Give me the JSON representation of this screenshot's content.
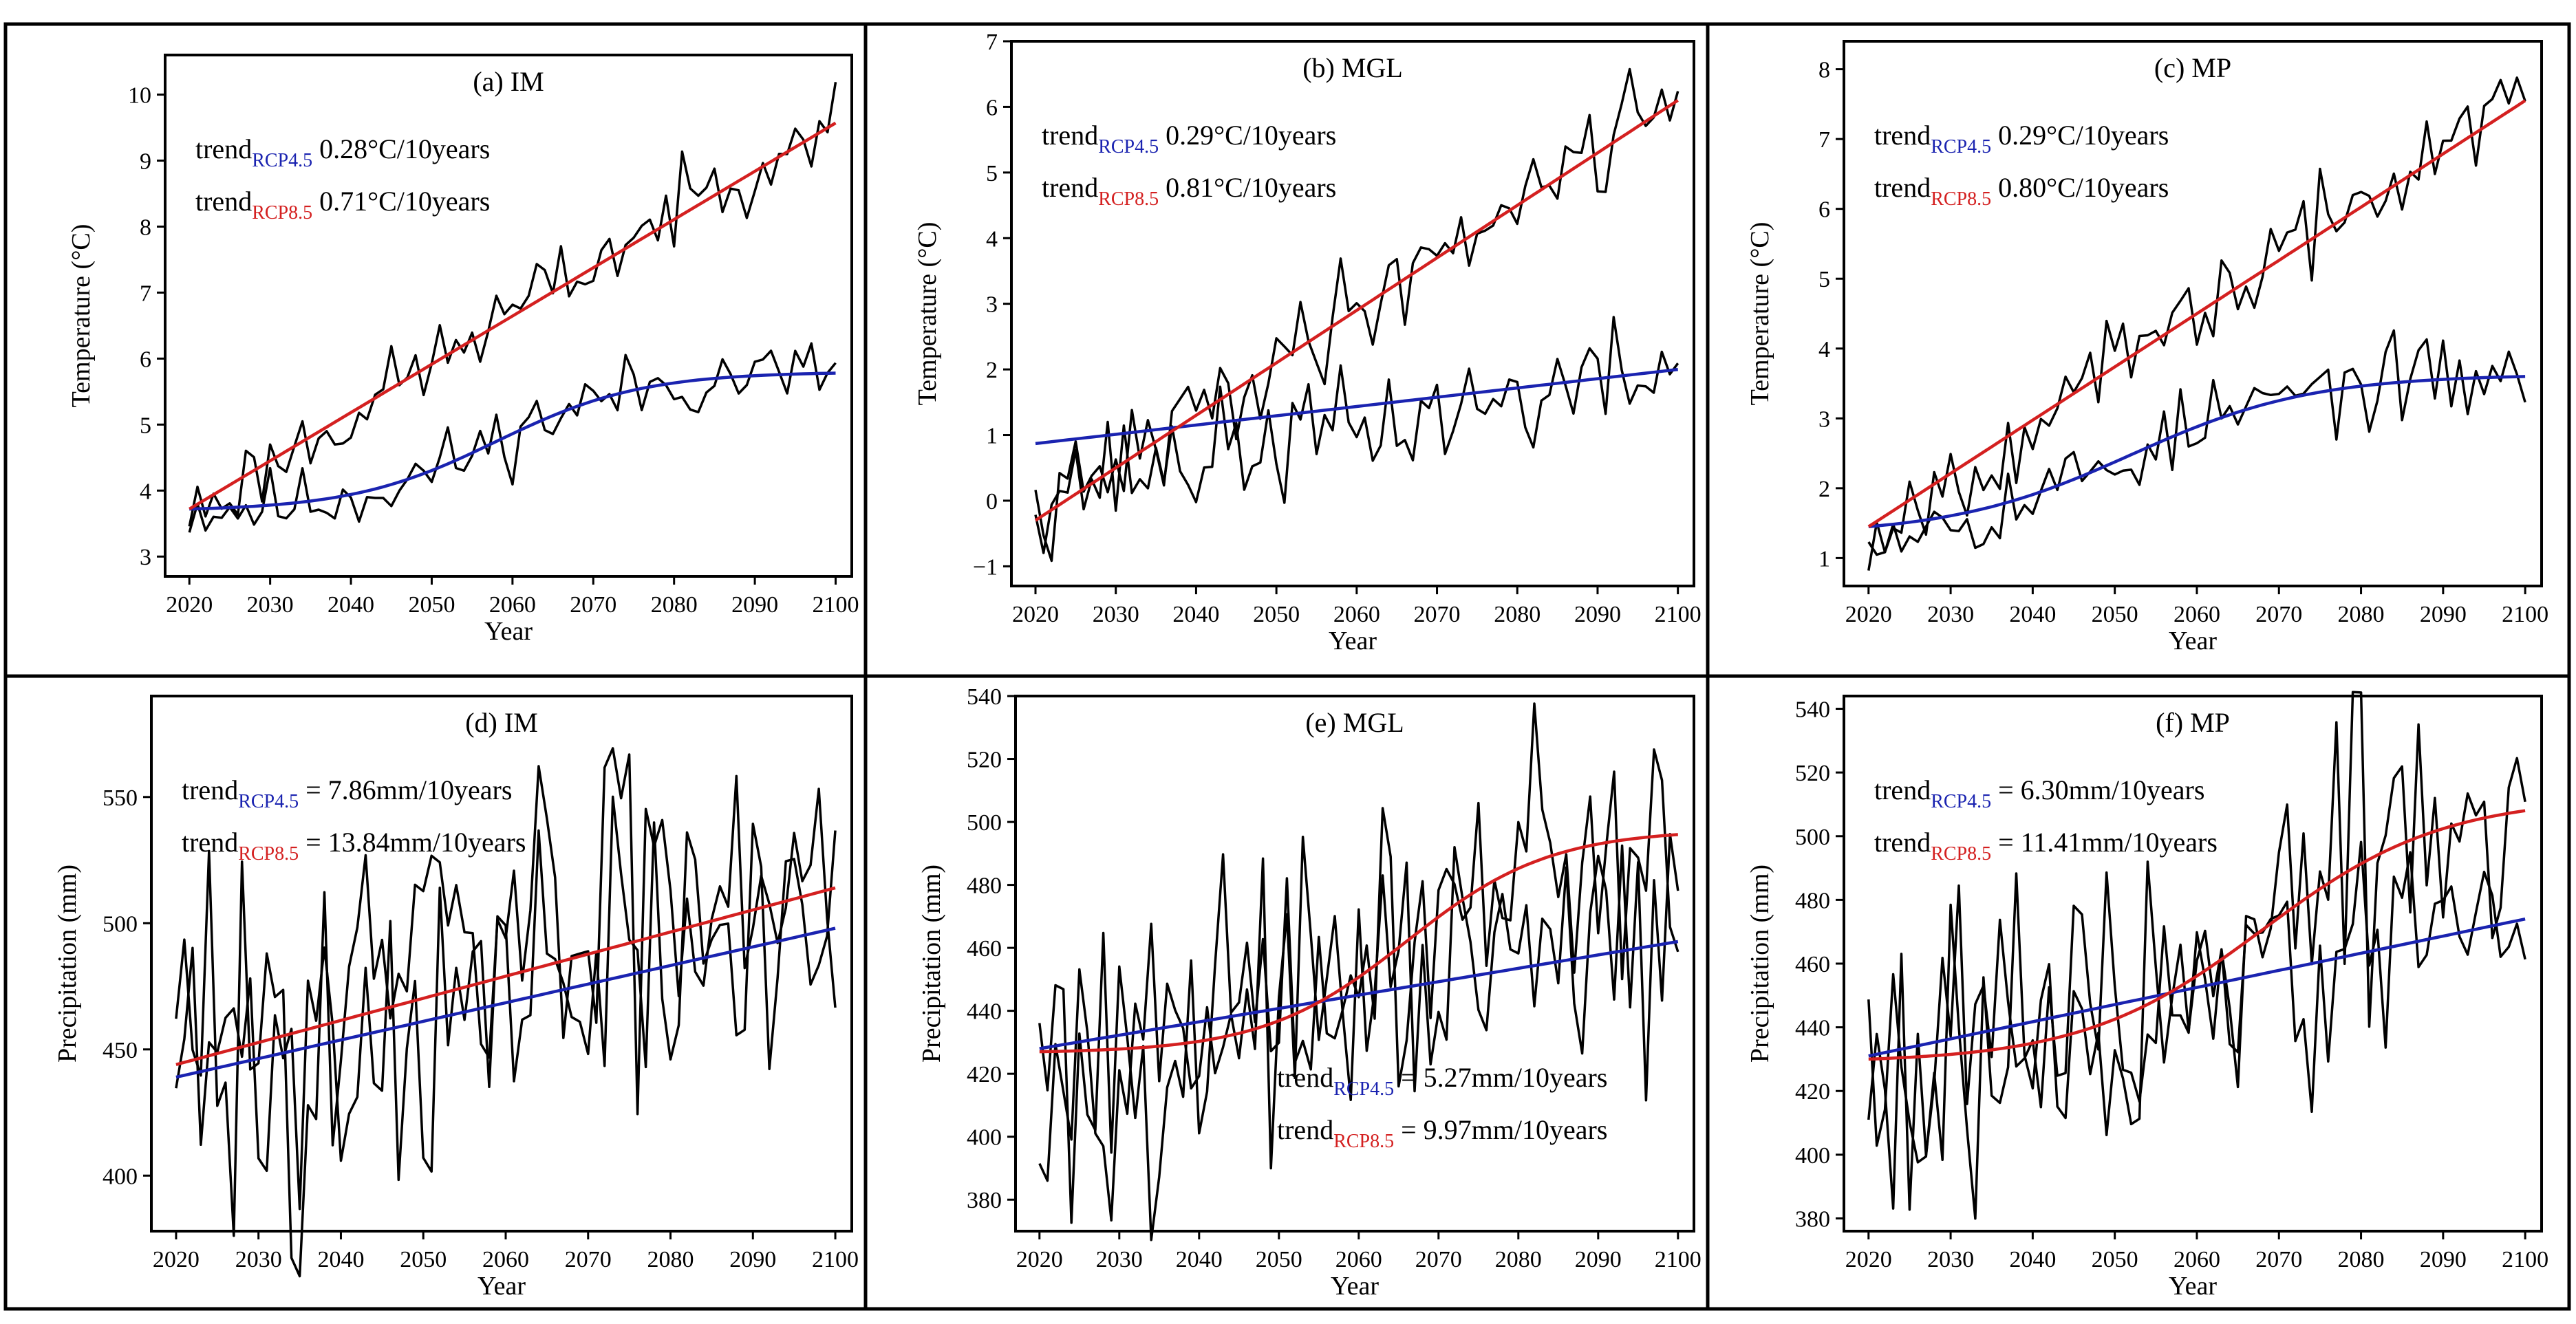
{
  "figure": {
    "year_label": "Year",
    "colors": {
      "rcp45": "#1a23b0",
      "rcp85": "#d42020",
      "obs": "#000000",
      "frame": "#000000"
    }
  },
  "chart_data": [
    {
      "type": "line",
      "title": "(a) IM",
      "xlabel": "Year",
      "ylabel": "Temperature (°C)",
      "xlim": [
        2017,
        2102
      ],
      "ylim": [
        2.7,
        10.6
      ],
      "xticks": [
        2020,
        2030,
        2040,
        2050,
        2060,
        2070,
        2080,
        2090,
        2100
      ],
      "yticks": [
        3,
        4,
        5,
        6,
        7,
        8,
        9,
        10
      ],
      "ytick_labels": [
        "3",
        "4",
        "5",
        "6",
        "7",
        "8",
        "9",
        "10"
      ],
      "legend_position": "top-left",
      "annotations": [
        {
          "sub": "RCP4.5",
          "value": "0.28°C/10years",
          "color": "#1a23b0"
        },
        {
          "sub": "RCP8.5",
          "value": "0.71°C/10years",
          "color": "#d42020"
        }
      ],
      "series": [
        {
          "name": "RCP4.5 annual",
          "kind": "annual",
          "trend": "logistic",
          "start": 3.72,
          "end": 5.78,
          "mid": 2058,
          "scale": 9,
          "amp": 0.28,
          "seed": 11
        },
        {
          "name": "RCP8.5 annual",
          "kind": "annual",
          "trend": "linear",
          "start": 3.65,
          "end": 9.75,
          "amp": 0.3,
          "seed": 23
        },
        {
          "name": "RCP4.5 smoothed",
          "kind": "smooth",
          "color": "rcp45",
          "trend": "logistic",
          "start": 3.72,
          "end": 5.78,
          "mid": 2058,
          "scale": 9
        },
        {
          "name": "RCP8.5 smoothed",
          "kind": "smooth",
          "color": "rcp85",
          "trend": "linear",
          "start": 3.72,
          "end": 9.57
        }
      ]
    },
    {
      "type": "line",
      "title": "(b) MGL",
      "xlabel": "Year",
      "ylabel": "Temperature (°C)",
      "xlim": [
        2017,
        2102
      ],
      "ylim": [
        -1.3,
        7.0
      ],
      "xticks": [
        2020,
        2030,
        2040,
        2050,
        2060,
        2070,
        2080,
        2090,
        2100
      ],
      "yticks": [
        -1,
        0,
        1,
        2,
        3,
        4,
        5,
        6,
        7
      ],
      "ytick_labels": [
        "−1",
        "0",
        "1",
        "2",
        "3",
        "4",
        "5",
        "6",
        "7"
      ],
      "legend_position": "top-left",
      "annotations": [
        {
          "sub": "RCP4.5",
          "value": "0.29°C/10years",
          "color": "#1a23b0"
        },
        {
          "sub": "RCP8.5",
          "value": "0.81°C/10years",
          "color": "#d42020"
        }
      ],
      "series": [
        {
          "name": "RCP4.5 annual",
          "kind": "annual",
          "trend": "linear",
          "start": 0.2,
          "end": 2.0,
          "amp": 0.45,
          "seed": 37
        },
        {
          "name": "RCP8.5 annual",
          "kind": "annual",
          "trend": "linear",
          "start": -0.35,
          "end": 6.3,
          "amp": 0.4,
          "seed": 41
        },
        {
          "name": "RCP4.5 smoothed",
          "kind": "smooth",
          "color": "rcp45",
          "trend": "linear",
          "start": 0.87,
          "end": 2.0
        },
        {
          "name": "RCP8.5 smoothed",
          "kind": "smooth",
          "color": "rcp85",
          "trend": "linear",
          "start": -0.3,
          "end": 6.1
        }
      ]
    },
    {
      "type": "line",
      "title": "(c) MP",
      "xlabel": "Year",
      "ylabel": "Temperature (°C)",
      "xlim": [
        2017,
        2102
      ],
      "ylim": [
        0.6,
        8.4
      ],
      "xticks": [
        2020,
        2030,
        2040,
        2050,
        2060,
        2070,
        2080,
        2090,
        2100
      ],
      "yticks": [
        1,
        2,
        3,
        4,
        5,
        6,
        7,
        8
      ],
      "ytick_labels": [
        "1",
        "2",
        "3",
        "4",
        "5",
        "6",
        "7",
        "8"
      ],
      "legend_position": "top-left",
      "annotations": [
        {
          "sub": "RCP4.5",
          "value": "0.29°C/10years",
          "color": "#1a23b0"
        },
        {
          "sub": "RCP8.5",
          "value": "0.80°C/10years",
          "color": "#d42020"
        }
      ],
      "series": [
        {
          "name": "RCP4.5 annual",
          "kind": "annual",
          "trend": "logistic",
          "start": 1.45,
          "end": 3.6,
          "mid": 2052,
          "scale": 11,
          "amp": 0.3,
          "seed": 53
        },
        {
          "name": "RCP8.5 annual",
          "kind": "annual",
          "trend": "linear",
          "start": 1.35,
          "end": 7.7,
          "amp": 0.32,
          "seed": 67
        },
        {
          "name": "RCP4.5 smoothed",
          "kind": "smooth",
          "color": "rcp45",
          "trend": "logistic",
          "start": 1.45,
          "end": 3.6,
          "mid": 2052,
          "scale": 11
        },
        {
          "name": "RCP8.5 smoothed",
          "kind": "smooth",
          "color": "rcp85",
          "trend": "linear",
          "start": 1.45,
          "end": 7.55
        }
      ]
    },
    {
      "type": "line",
      "title": "(d) IM",
      "xlabel": "Year",
      "ylabel": "Precipitation (mm)",
      "xlim": [
        2017,
        2102
      ],
      "ylim": [
        378,
        590
      ],
      "xticks": [
        2020,
        2030,
        2040,
        2050,
        2060,
        2070,
        2080,
        2090,
        2100
      ],
      "yticks": [
        400,
        450,
        500,
        550
      ],
      "ytick_labels": [
        "400",
        "450",
        "500",
        "550"
      ],
      "legend_position": "top-left",
      "annotations": [
        {
          "sub": "RCP4.5",
          "value": "= 7.86mm/10years",
          "color": "#1a23b0"
        },
        {
          "sub": "RCP8.5",
          "value": "= 13.84mm/10years",
          "color": "#d42020"
        }
      ],
      "series": [
        {
          "name": "RCP4.5 annual",
          "kind": "annual",
          "trend": "linear",
          "start": 440,
          "end": 500,
          "amp": 32,
          "seed": 71
        },
        {
          "name": "RCP8.5 annual",
          "kind": "annual",
          "trend": "linear",
          "start": 445,
          "end": 540,
          "amp": 38,
          "seed": 83
        },
        {
          "name": "RCP4.5 smoothed",
          "kind": "smooth",
          "color": "rcp45",
          "trend": "linear",
          "start": 439,
          "end": 498
        },
        {
          "name": "RCP8.5 smoothed",
          "kind": "smooth",
          "color": "rcp85",
          "trend": "linear",
          "start": 444,
          "end": 514
        }
      ]
    },
    {
      "type": "line",
      "title": "(e) MGL",
      "xlabel": "Year",
      "ylabel": "Precipitation (mm)",
      "xlim": [
        2017,
        2102
      ],
      "ylim": [
        370,
        540
      ],
      "xticks": [
        2020,
        2030,
        2040,
        2050,
        2060,
        2070,
        2080,
        2090,
        2100
      ],
      "yticks": [
        380,
        400,
        420,
        440,
        460,
        480,
        500,
        520,
        540
      ],
      "ytick_labels": [
        "380",
        "400",
        "420",
        "440",
        "460",
        "480",
        "500",
        "520",
        "540"
      ],
      "legend_position": "bottom-right",
      "annotations": [
        {
          "sub": "RCP4.5",
          "value": "= 5.27mm/10years",
          "color": "#1a23b0"
        },
        {
          "sub": "RCP8.5",
          "value": "= 9.97mm/10years",
          "color": "#d42020"
        }
      ],
      "series": [
        {
          "name": "RCP4.5 annual",
          "kind": "annual",
          "trend": "linear",
          "start": 428,
          "end": 462,
          "amp": 20,
          "seed": 97
        },
        {
          "name": "RCP8.5 annual",
          "kind": "annual",
          "trend": "logistic",
          "start": 427,
          "end": 496,
          "mid": 2066,
          "scale": 9,
          "amp": 24,
          "seed": 101
        },
        {
          "name": "RCP4.5 smoothed",
          "kind": "smooth",
          "color": "rcp45",
          "trend": "linear",
          "start": 428,
          "end": 462
        },
        {
          "name": "RCP8.5 smoothed",
          "kind": "smooth",
          "color": "rcp85",
          "trend": "logistic",
          "start": 427,
          "end": 496,
          "mid": 2066,
          "scale": 9
        }
      ]
    },
    {
      "type": "line",
      "title": "(f) MP",
      "xlabel": "Year",
      "ylabel": "Precipitation (mm)",
      "xlim": [
        2017,
        2102
      ],
      "ylim": [
        376,
        544
      ],
      "xticks": [
        2020,
        2030,
        2040,
        2050,
        2060,
        2070,
        2080,
        2090,
        2100
      ],
      "yticks": [
        380,
        400,
        420,
        440,
        460,
        480,
        500,
        520,
        540
      ],
      "ytick_labels": [
        "380",
        "400",
        "420",
        "440",
        "460",
        "480",
        "500",
        "520",
        "540"
      ],
      "legend_position": "top-left",
      "annotations": [
        {
          "sub": "RCP4.5",
          "value": "= 6.30mm/10years",
          "color": "#1a23b0"
        },
        {
          "sub": "RCP8.5",
          "value": "= 11.41mm/10years",
          "color": "#d42020"
        }
      ],
      "series": [
        {
          "name": "RCP4.5 annual",
          "kind": "annual",
          "trend": "linear",
          "start": 431,
          "end": 474,
          "amp": 20,
          "seed": 113
        },
        {
          "name": "RCP8.5 annual",
          "kind": "annual",
          "trend": "logistic",
          "start": 430,
          "end": 508,
          "mid": 2068,
          "scale": 11,
          "amp": 26,
          "seed": 127
        },
        {
          "name": "RCP4.5 smoothed",
          "kind": "smooth",
          "color": "rcp45",
          "trend": "linear",
          "start": 431,
          "end": 474
        },
        {
          "name": "RCP8.5 smoothed",
          "kind": "smooth",
          "color": "rcp85",
          "trend": "logistic",
          "start": 430,
          "end": 508,
          "mid": 2068,
          "scale": 11
        }
      ]
    }
  ]
}
